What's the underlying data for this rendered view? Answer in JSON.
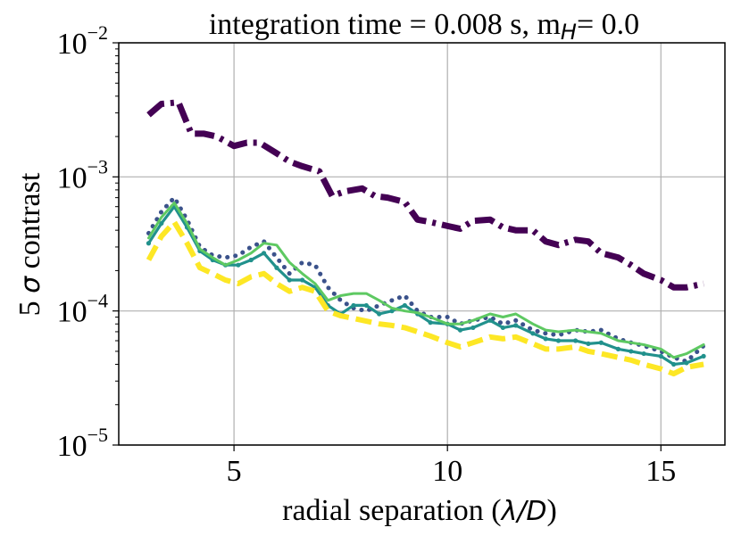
{
  "chart_data": {
    "type": "line",
    "title": {
      "prefix": "integration time = 0.008 s, m",
      "subscript": "H",
      "suffix": "= 0.0"
    },
    "xlabel": {
      "prefix": "radial separation (",
      "math": "λ/D",
      "suffix": ")"
    },
    "ylabel": {
      "prefix": "5 ",
      "math": "σ",
      "suffix": " contrast"
    },
    "xlim": [
      2.3,
      16.5
    ],
    "ylim": [
      1e-05,
      0.01
    ],
    "yscale": "log",
    "grid": true,
    "x_ticks": [
      {
        "value": 5,
        "label": "5"
      },
      {
        "value": 10,
        "label": "10"
      },
      {
        "value": 15,
        "label": "15"
      }
    ],
    "y_ticks": [
      {
        "value": 1e-05,
        "base": "10",
        "exp": "−5"
      },
      {
        "value": 0.0001,
        "base": "10",
        "exp": "−4"
      },
      {
        "value": 0.001,
        "base": "10",
        "exp": "−3"
      },
      {
        "value": 0.01,
        "base": "10",
        "exp": "−2"
      }
    ],
    "series": [
      {
        "name": "dash-dot (purple)",
        "color": "#440154",
        "style": "dashdot",
        "x": [
          3.0,
          3.3,
          3.7,
          4.0,
          4.3,
          4.6,
          5.0,
          5.3,
          5.6,
          6.0,
          6.3,
          6.6,
          7.0,
          7.3,
          7.6,
          8.0,
          8.3,
          8.6,
          9.0,
          9.3,
          9.6,
          10.0,
          10.3,
          10.6,
          11.0,
          11.3,
          11.6,
          12.0,
          12.3,
          12.6,
          13.0,
          13.3,
          13.6,
          14.0,
          14.3,
          14.6,
          15.0,
          15.3,
          15.6,
          16.0
        ],
        "y": [
          0.0029,
          0.0035,
          0.0036,
          0.0021,
          0.0021,
          0.002,
          0.0017,
          0.0018,
          0.0018,
          0.0015,
          0.0013,
          0.0012,
          0.0011,
          0.00072,
          0.00078,
          0.00082,
          0.00072,
          0.0007,
          0.00065,
          0.00048,
          0.00046,
          0.00043,
          0.00041,
          0.00047,
          0.00048,
          0.00042,
          0.0004,
          0.0004,
          0.00033,
          0.00031,
          0.00034,
          0.00033,
          0.00027,
          0.00025,
          0.00022,
          0.00019,
          0.00017,
          0.00015,
          0.00015,
          0.00016
        ]
      },
      {
        "name": "dotted (dark blue)",
        "color": "#3b528b",
        "style": "dotted",
        "x": [
          3.0,
          3.3,
          3.6,
          3.9,
          4.2,
          4.5,
          4.8,
          5.1,
          5.4,
          5.7,
          6.0,
          6.3,
          6.6,
          6.9,
          7.2,
          7.5,
          7.8,
          8.1,
          8.4,
          8.7,
          9.0,
          9.3,
          9.6,
          10.0,
          10.3,
          10.6,
          11.0,
          11.3,
          11.6,
          12.0,
          12.3,
          12.6,
          13.0,
          13.3,
          13.6,
          14.0,
          14.3,
          14.6,
          15.0,
          15.3,
          15.6,
          16.0
        ],
        "y": [
          0.00038,
          0.00055,
          0.0007,
          0.00048,
          0.0003,
          0.00026,
          0.00025,
          0.00026,
          0.0003,
          0.00033,
          0.00025,
          0.00019,
          0.00023,
          0.00022,
          0.00015,
          0.00012,
          0.000105,
          0.0001,
          0.00011,
          0.00012,
          0.00013,
          0.0001,
          9e-05,
          9e-05,
          8e-05,
          8.5e-05,
          9e-05,
          8e-05,
          8.5e-05,
          7.2e-05,
          6.8e-05,
          6.6e-05,
          7.2e-05,
          7e-05,
          7.2e-05,
          6.2e-05,
          5.8e-05,
          5.5e-05,
          5e-05,
          4.5e-05,
          4.2e-05,
          5.5e-05
        ]
      },
      {
        "name": "dot-marker (teal)",
        "color": "#21918c",
        "style": "marker",
        "x": [
          3.0,
          3.3,
          3.6,
          3.9,
          4.2,
          4.5,
          4.8,
          5.1,
          5.4,
          5.7,
          6.0,
          6.3,
          6.6,
          6.9,
          7.2,
          7.5,
          7.8,
          8.1,
          8.4,
          8.7,
          9.0,
          9.3,
          9.6,
          10.0,
          10.3,
          10.6,
          11.0,
          11.3,
          11.6,
          12.0,
          12.3,
          12.6,
          13.0,
          13.3,
          13.6,
          14.0,
          14.3,
          14.6,
          15.0,
          15.3,
          15.6,
          16.0
        ],
        "y": [
          0.00032,
          0.00045,
          0.0006,
          0.00042,
          0.00028,
          0.00024,
          0.00022,
          0.00022,
          0.00024,
          0.00027,
          0.00021,
          0.00017,
          0.00017,
          0.00015,
          0.00011,
          9.5e-05,
          0.00011,
          0.00011,
          9.5e-05,
          0.0001,
          0.00011,
          9.5e-05,
          8.2e-05,
          8e-05,
          7.2e-05,
          7.5e-05,
          8.5e-05,
          7.5e-05,
          7.8e-05,
          6.8e-05,
          6.2e-05,
          6e-05,
          6e-05,
          5.7e-05,
          5.8e-05,
          5.2e-05,
          5e-05,
          4.8e-05,
          4.6e-05,
          4e-05,
          4.1e-05,
          4.6e-05
        ]
      },
      {
        "name": "solid (green)",
        "color": "#5ec962",
        "style": "solid",
        "x": [
          3.0,
          3.3,
          3.6,
          3.9,
          4.2,
          4.5,
          4.8,
          5.1,
          5.4,
          5.7,
          6.0,
          6.3,
          6.6,
          6.9,
          7.2,
          7.5,
          7.8,
          8.1,
          8.4,
          8.7,
          9.0,
          9.3,
          9.6,
          10.0,
          10.3,
          10.6,
          11.0,
          11.3,
          11.6,
          12.0,
          12.3,
          12.6,
          13.0,
          13.3,
          13.6,
          14.0,
          14.3,
          14.6,
          15.0,
          15.3,
          15.6,
          16.0
        ],
        "y": [
          0.00035,
          0.0005,
          0.00064,
          0.00045,
          0.00029,
          0.00025,
          0.00022,
          0.00024,
          0.00027,
          0.00032,
          0.00031,
          0.00023,
          0.00019,
          0.00016,
          0.00012,
          0.00013,
          0.000135,
          0.000135,
          0.00012,
          0.000105,
          0.0001,
          9.7e-05,
          9e-05,
          8e-05,
          8e-05,
          8.5e-05,
          9.5e-05,
          9e-05,
          9.5e-05,
          8e-05,
          7.2e-05,
          7e-05,
          7.2e-05,
          7e-05,
          6.8e-05,
          6e-05,
          5.8e-05,
          5.6e-05,
          5.2e-05,
          4.5e-05,
          4.8e-05,
          5.6e-05
        ]
      },
      {
        "name": "dashed (yellow)",
        "color": "#fde725",
        "style": "dashed",
        "x": [
          3.0,
          3.3,
          3.6,
          3.9,
          4.2,
          4.5,
          4.8,
          5.1,
          5.4,
          5.7,
          6.0,
          6.3,
          6.6,
          6.9,
          7.2,
          7.5,
          7.8,
          8.1,
          8.4,
          8.7,
          9.0,
          9.3,
          9.6,
          10.0,
          10.3,
          10.6,
          11.0,
          11.3,
          11.6,
          12.0,
          12.3,
          12.6,
          13.0,
          13.3,
          13.6,
          14.0,
          14.3,
          14.6,
          15.0,
          15.3,
          15.6,
          16.0
        ],
        "y": [
          0.00024,
          0.00036,
          0.00046,
          0.00032,
          0.00021,
          0.00019,
          0.00017,
          0.00016,
          0.00018,
          0.00019,
          0.00016,
          0.00014,
          0.00015,
          0.00014,
          0.0001,
          9.2e-05,
          8.8e-05,
          8.4e-05,
          8e-05,
          7.8e-05,
          7.5e-05,
          7e-05,
          6.5e-05,
          5.8e-05,
          5.4e-05,
          5.8e-05,
          6.4e-05,
          6.2e-05,
          6.4e-05,
          5.7e-05,
          5.2e-05,
          5.2e-05,
          5.4e-05,
          5e-05,
          4.8e-05,
          4.5e-05,
          4.3e-05,
          4e-05,
          3.7e-05,
          3.4e-05,
          3.8e-05,
          4e-05
        ]
      }
    ]
  }
}
